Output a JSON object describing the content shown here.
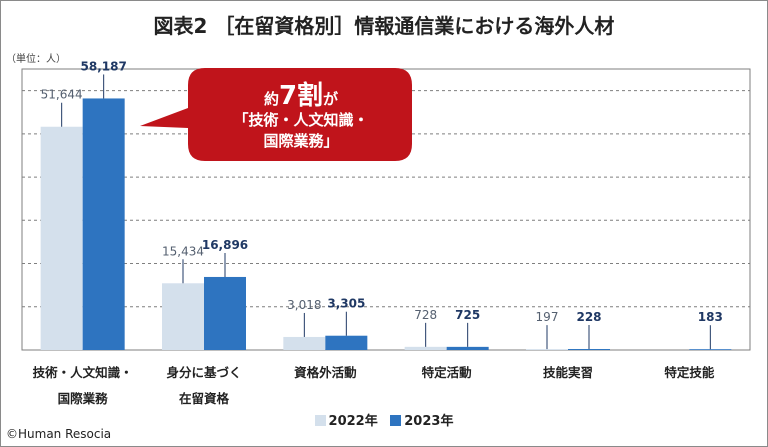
{
  "title": "図表2 ［在留資格別］情報通信業における海外人材",
  "unit_label": "（単位：人）",
  "credit": "©Human Resocia",
  "callout": {
    "prefix": "約",
    "emphasis": "7割",
    "suffix": "が",
    "line2": "「技術・人文知識・",
    "line3": "国際業務」",
    "color": "#c0141b"
  },
  "colors": {
    "series_2022": "#d4e0ec",
    "series_2023": "#2e74c0",
    "grid": "#7f7f7f",
    "plot_border": "#7f7f7f"
  },
  "chart_data": {
    "type": "bar",
    "categories": [
      [
        "技術・人文知識・",
        "国際業務"
      ],
      [
        "身分に基づく",
        "在留資格"
      ],
      [
        "資格外活動"
      ],
      [
        "特定活動"
      ],
      [
        "技能実習"
      ],
      [
        "特定技能"
      ]
    ],
    "series": [
      {
        "name": "2022年",
        "values": [
          51644,
          15434,
          3018,
          728,
          197,
          null
        ],
        "labels": [
          "51,644",
          "15,434",
          "3,018",
          "728",
          "197",
          ""
        ]
      },
      {
        "name": "2023年",
        "values": [
          58187,
          16896,
          3305,
          725,
          228,
          183
        ],
        "labels": [
          "58,187",
          "16,896",
          "3,305",
          "725",
          "228",
          "183"
        ]
      }
    ],
    "ylim": [
      0,
      65000
    ],
    "grid": true,
    "legend_position": "bottom"
  }
}
